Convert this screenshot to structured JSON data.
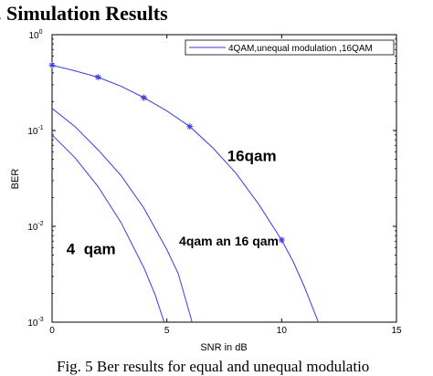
{
  "heading_fragment": ". Simulation Results",
  "caption": "Fig. 5 Ber results for equal and unequal modulatio",
  "chart_data": {
    "type": "line",
    "title": "",
    "xlabel": "SNR in dB",
    "ylabel": "BER",
    "xlim": [
      0,
      15
    ],
    "ylim": [
      0.001,
      1
    ],
    "yscale": "log",
    "grid": false,
    "legend_position": "top-right",
    "xticks": [
      0,
      5,
      10,
      15
    ],
    "xtick_labels": [
      "0",
      "5",
      "10",
      "15"
    ],
    "yticks": [
      1,
      0.1,
      0.01,
      0.001
    ],
    "ytick_labels": [
      {
        "base": "10",
        "exp": "0"
      },
      {
        "base": "10",
        "exp": "-1"
      },
      {
        "base": "10",
        "exp": "-2"
      },
      {
        "base": "10",
        "exp": "-3"
      }
    ],
    "line_color": "#3a3ae6",
    "series": [
      {
        "name": "4QAM,unequal modulation ,16QAM",
        "marker": "star",
        "x": [
          0,
          1,
          2,
          3,
          4,
          5,
          6,
          7,
          8,
          9,
          10,
          10.5,
          11,
          11.6
        ],
        "y": [
          0.48,
          0.42,
          0.36,
          0.29,
          0.22,
          0.16,
          0.11,
          0.066,
          0.036,
          0.017,
          0.0072,
          0.0043,
          0.0023,
          0.001
        ],
        "marker_x": [
          0,
          2,
          4,
          6,
          10
        ],
        "marker_y": [
          0.48,
          0.36,
          0.22,
          0.11,
          0.0072
        ]
      },
      {
        "marker": "none",
        "x": [
          0,
          1,
          2,
          3,
          4,
          5,
          5.5,
          6.1
        ],
        "y": [
          0.17,
          0.11,
          0.063,
          0.034,
          0.0155,
          0.0057,
          0.0032,
          0.001
        ]
      },
      {
        "marker": "none",
        "x": [
          0,
          1,
          2,
          3,
          4,
          4.5,
          4.88
        ],
        "y": [
          0.09,
          0.052,
          0.026,
          0.011,
          0.0037,
          0.0019,
          0.001
        ]
      }
    ],
    "annotations": [
      {
        "text": "16qam",
        "x": 8.7,
        "y": 0.048
      },
      {
        "text": "4qam an 16 qam",
        "x": 7.7,
        "y": 0.0063
      },
      {
        "text": "4  qam",
        "x": 1.7,
        "y": 0.0051
      }
    ]
  }
}
